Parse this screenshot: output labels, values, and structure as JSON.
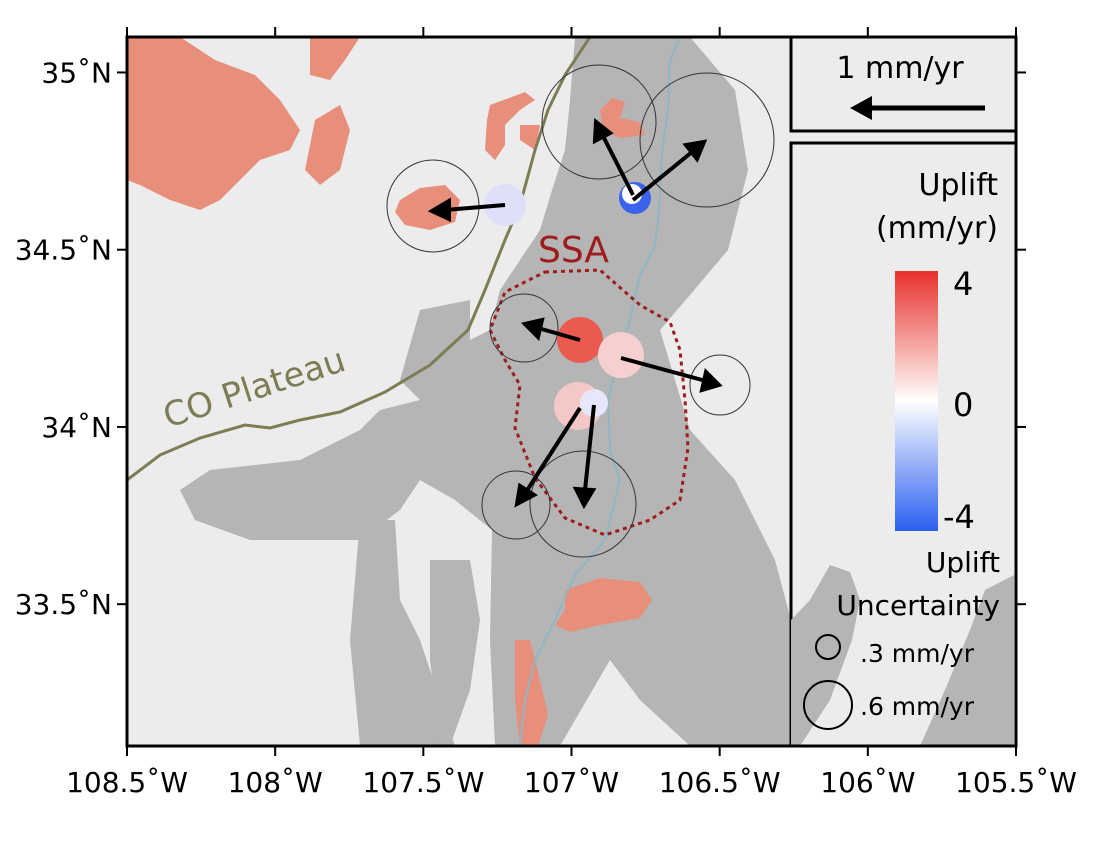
{
  "map": {
    "x_ticks": [
      {
        "lon": -108.5,
        "label": "108.5˚W"
      },
      {
        "lon": -108.0,
        "label": "108˚W"
      },
      {
        "lon": -107.5,
        "label": "107.5˚W"
      },
      {
        "lon": -107.0,
        "label": "107˚W"
      },
      {
        "lon": -106.5,
        "label": "106.5˚W"
      },
      {
        "lon": -106.0,
        "label": "106˚W"
      },
      {
        "lon": -105.5,
        "label": "105.5˚W"
      }
    ],
    "y_ticks": [
      {
        "lat": 35.0,
        "label": "35˚N"
      },
      {
        "lat": 34.5,
        "label": "34.5˚N"
      },
      {
        "lat": 34.0,
        "label": "34˚N"
      },
      {
        "lat": 33.5,
        "label": "33.5˚N"
      }
    ],
    "lon_range": [
      -108.5,
      -105.5
    ],
    "lat_range": [
      33.1,
      35.1
    ],
    "plateau_label": "CO Plateau",
    "ssa_label": "SSA",
    "scale_label": "1 mm/yr",
    "colorbar": {
      "title_line1": "Uplift",
      "title_line2": "(mm/yr)",
      "max_label": "4",
      "mid_label": "0",
      "min_label": "-4",
      "colors": [
        "#e8302a",
        "#ffffff",
        "#2a5ff0"
      ]
    },
    "uncertainty_legend": {
      "title_line1": "Uplift",
      "title_line2": "Uncertainty",
      "small_label": ".3 mm/yr",
      "large_label": ".6 mm/yr"
    },
    "colors": {
      "background": "#ececec",
      "rift_basin": "#b5b5b5",
      "volcanic": "#e88f7b",
      "plateau_line": "#7d7d55",
      "ssa_outline": "#9e1c1c",
      "river": "#8fb6c4",
      "arrow": "#000000"
    }
  }
}
